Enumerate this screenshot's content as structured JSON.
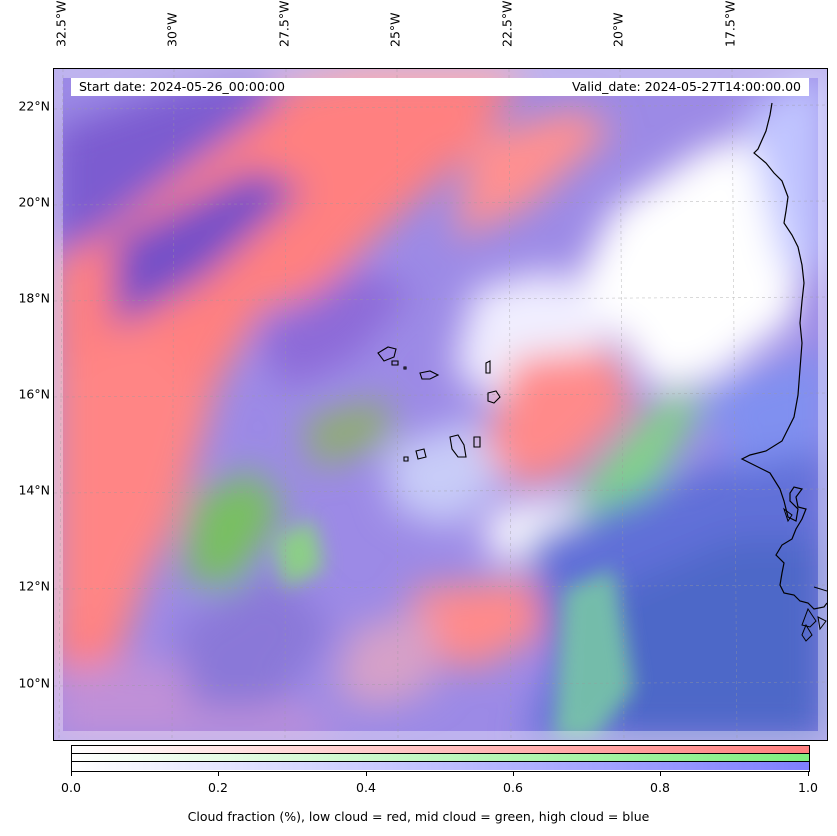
{
  "map": {
    "lon_labels": [
      "32.5°W",
      "30°W",
      "27.5°W",
      "25°W",
      "22.5°W",
      "20°W",
      "17.5°W"
    ],
    "lat_labels": [
      "22°N",
      "20°N",
      "18°N",
      "16°N",
      "14°N",
      "12°N",
      "10°N"
    ],
    "start_date": "Start date: 2024-05-26_00:00:00",
    "valid_date": "Valid_date: 2024-05-27T14:00:00.00",
    "colors": {
      "low_cloud": "#ff7f7f",
      "mid_cloud": "#7fef7f",
      "high_cloud": "#7f7fff",
      "overlap": "#8060d8",
      "clear": "#ffffff",
      "coastline": "#000000"
    }
  },
  "colorbar": {
    "ticks": [
      "0.0",
      "0.2",
      "0.4",
      "0.6",
      "0.8",
      "1.0"
    ],
    "range": [
      0.0,
      1.0
    ],
    "title": "Cloud fraction (%), low cloud = red, mid cloud = green, high cloud = blue"
  }
}
